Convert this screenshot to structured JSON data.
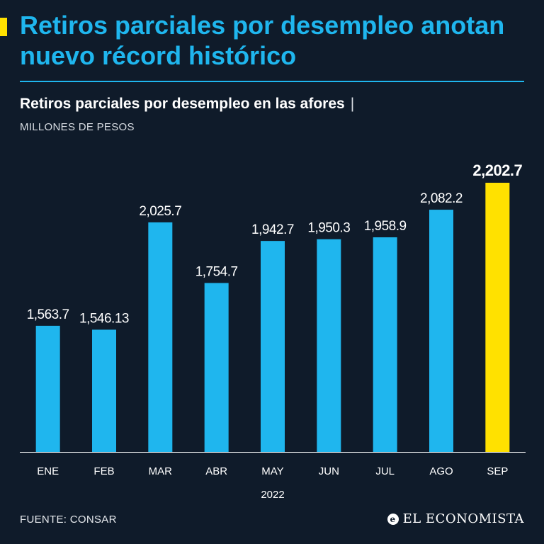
{
  "header": {
    "headline": "Retiros parciales por desempleo anotan nuevo récord histórico"
  },
  "subtitle": {
    "text": "Retiros parciales por desempleo en las afores",
    "separator": "|",
    "unit": "MILLONES DE PESOS"
  },
  "chart_data": {
    "type": "bar",
    "title": "Retiros parciales por desempleo en las afores",
    "ylabel": "MILLONES DE PESOS",
    "xlabel": "2022",
    "categories": [
      "ENE",
      "FEB",
      "MAR",
      "ABR",
      "MAY",
      "JUN",
      "JUL",
      "AGO",
      "SEP"
    ],
    "values": [
      1563.7,
      1546.13,
      2025.7,
      1754.7,
      1942.7,
      1950.3,
      1958.9,
      2082.2,
      2202.7
    ],
    "value_labels": [
      "1,563.7",
      "1,546.13",
      "2,025.7",
      "1,754.7",
      "1,942.7",
      "1,950.3",
      "1,958.9",
      "2,082.2",
      "2,202.7"
    ],
    "ylim": [
      1000,
      2250
    ],
    "highlight_index": 8,
    "grid": false,
    "colors": {
      "bar": "#1fb6ee",
      "highlight": "#ffe100",
      "axis": "#ffffff",
      "text": "#ffffff"
    }
  },
  "footer": {
    "source": "FUENTE: CONSAR",
    "brand": "EL ECONOMISTA",
    "brand_icon": "e-logo-icon"
  },
  "colors": {
    "background": "#0f1b2a",
    "accent": "#1fb6ee",
    "highlight": "#ffe100"
  }
}
